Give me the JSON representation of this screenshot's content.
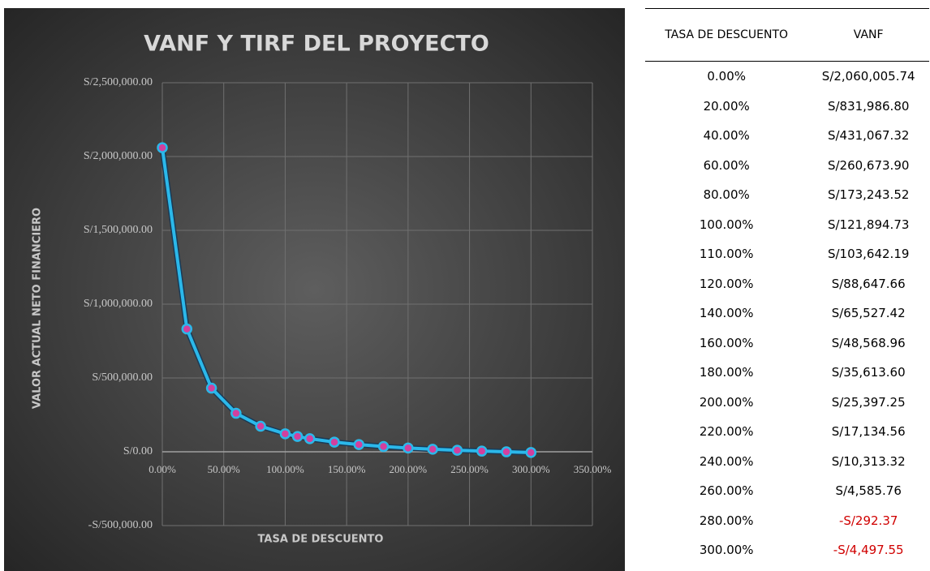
{
  "chart_data": {
    "type": "line",
    "title": "VANF Y TIRF DEL PROYECTO",
    "x_label": "TASA DE DESCUENTO",
    "y_label": "VALOR ACTUAL NETO FINANCIERO",
    "x": [
      0,
      20,
      40,
      60,
      80,
      100,
      110,
      120,
      140,
      160,
      180,
      200,
      220,
      240,
      260,
      280,
      300
    ],
    "series": [
      {
        "name": "VANF",
        "color": "#2bb8ea",
        "marker_color": "#d2409e",
        "values": [
          2060005.74,
          831986.8,
          431067.32,
          260673.9,
          173243.52,
          121894.73,
          103642.19,
          88647.66,
          65527.42,
          48568.96,
          35613.6,
          25397.25,
          17134.56,
          10313.32,
          4585.76,
          -292.37,
          -4497.55
        ]
      }
    ],
    "xlim": [
      0,
      350
    ],
    "xticks": [
      {
        "value": 0,
        "label": "0.00%"
      },
      {
        "value": 50,
        "label": "50.00%"
      },
      {
        "value": 100,
        "label": "100.00%"
      },
      {
        "value": 150,
        "label": "150.00%"
      },
      {
        "value": 200,
        "label": "200.00%"
      },
      {
        "value": 250,
        "label": "250.00%"
      },
      {
        "value": 300,
        "label": "300.00%"
      },
      {
        "value": 350,
        "label": "350.00%"
      }
    ],
    "ylim": [
      -500000,
      2500000
    ],
    "yticks": [
      {
        "value": -500000,
        "label": "-S/500,000.00"
      },
      {
        "value": 0,
        "label": "S/0.00"
      },
      {
        "value": 500000,
        "label": "S/500,000.00"
      },
      {
        "value": 1000000,
        "label": "S/1,000,000.00"
      },
      {
        "value": 1500000,
        "label": "S/1,500,000.00"
      },
      {
        "value": 2000000,
        "label": "S/2,000,000.00"
      },
      {
        "value": 2500000,
        "label": "S/2,500,000.00"
      }
    ],
    "grid": true
  },
  "table": {
    "header": [
      "TASA DE DESCUENTO",
      "VANF"
    ],
    "rows": [
      [
        "0.00%",
        "S/2,060,005.74"
      ],
      [
        "20.00%",
        "S/831,986.80"
      ],
      [
        "40.00%",
        "S/431,067.32"
      ],
      [
        "60.00%",
        "S/260,673.90"
      ],
      [
        "80.00%",
        "S/173,243.52"
      ],
      [
        "100.00%",
        "S/121,894.73"
      ],
      [
        "110.00%",
        "S/103,642.19"
      ],
      [
        "120.00%",
        "S/88,647.66"
      ],
      [
        "140.00%",
        "S/65,527.42"
      ],
      [
        "160.00%",
        "S/48,568.96"
      ],
      [
        "180.00%",
        "S/35,613.60"
      ],
      [
        "200.00%",
        "S/25,397.25"
      ],
      [
        "220.00%",
        "S/17,134.56"
      ],
      [
        "240.00%",
        "S/10,313.32"
      ],
      [
        "260.00%",
        "S/4,585.76"
      ],
      [
        "280.00%",
        "-S/292.37"
      ],
      [
        "300.00%",
        "-S/4,497.55"
      ]
    ]
  }
}
